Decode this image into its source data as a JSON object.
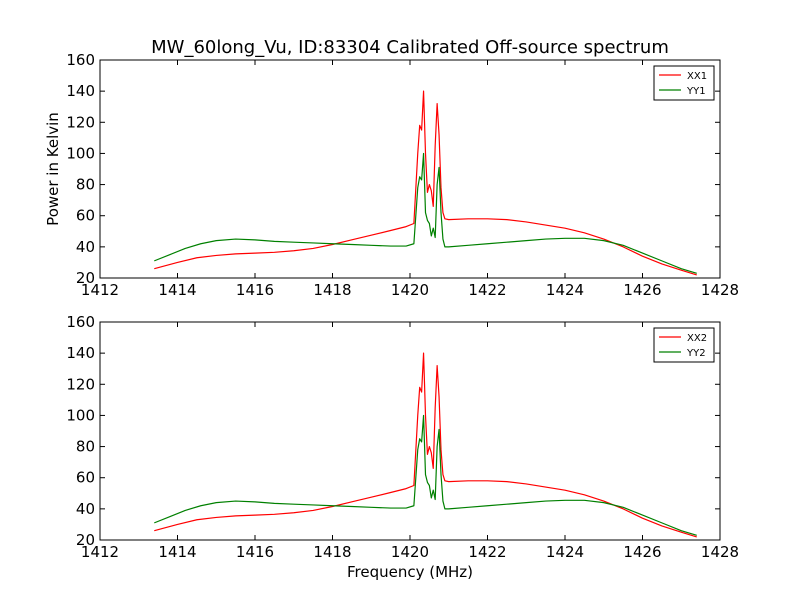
{
  "figure": {
    "title": "MW_60long_Vu, ID:83304 Calibrated Off-source spectrum"
  },
  "colors": {
    "xx": "#ff0000",
    "yy": "#008000",
    "frame": "#000000"
  },
  "chart_data": [
    {
      "type": "line",
      "xlabel": "",
      "ylabel": "Power in Kelvin",
      "xlim": [
        1412,
        1428
      ],
      "ylim": [
        20,
        160
      ],
      "xticks": [
        1412,
        1414,
        1416,
        1418,
        1420,
        1422,
        1424,
        1426,
        1428
      ],
      "yticks": [
        20,
        40,
        60,
        80,
        100,
        120,
        140,
        160
      ],
      "legend": "top-right",
      "grid": false,
      "series": [
        {
          "name": "XX1",
          "color": "#ff0000",
          "x": [
            1413.4,
            1414.0,
            1414.5,
            1415.0,
            1415.5,
            1416.0,
            1416.5,
            1417.0,
            1417.5,
            1418.0,
            1418.5,
            1419.0,
            1419.5,
            1419.9,
            1420.1,
            1420.2,
            1420.25,
            1420.3,
            1420.35,
            1420.4,
            1420.45,
            1420.5,
            1420.55,
            1420.6,
            1420.65,
            1420.7,
            1420.75,
            1420.8,
            1420.85,
            1420.9,
            1421.0,
            1421.5,
            1422.0,
            1422.5,
            1423.0,
            1423.5,
            1424.0,
            1424.5,
            1425.0,
            1425.5,
            1426.0,
            1426.5,
            1427.0,
            1427.4
          ],
          "y": [
            26,
            30,
            33,
            34.5,
            35.5,
            36,
            36.5,
            37.5,
            39,
            41.5,
            44.5,
            47.5,
            50.5,
            53,
            55,
            100,
            118,
            115,
            140,
            100,
            75,
            80,
            76,
            66,
            105,
            132,
            112,
            78,
            62,
            58,
            57.5,
            58,
            58,
            57.5,
            56,
            54,
            52,
            49,
            45,
            40,
            34,
            29,
            25,
            22
          ]
        },
        {
          "name": "YY1",
          "color": "#008000",
          "x": [
            1413.4,
            1413.8,
            1414.2,
            1414.6,
            1415.0,
            1415.5,
            1416.0,
            1416.5,
            1417.0,
            1417.5,
            1418.0,
            1418.5,
            1419.0,
            1419.5,
            1419.9,
            1420.1,
            1420.2,
            1420.25,
            1420.3,
            1420.35,
            1420.4,
            1420.45,
            1420.5,
            1420.55,
            1420.6,
            1420.65,
            1420.7,
            1420.75,
            1420.8,
            1420.85,
            1420.9,
            1421.0,
            1421.5,
            1422.0,
            1422.5,
            1423.0,
            1423.5,
            1424.0,
            1424.5,
            1425.0,
            1425.5,
            1426.0,
            1426.5,
            1427.0,
            1427.4
          ],
          "y": [
            31,
            35,
            39,
            42,
            44,
            45,
            44.5,
            43.5,
            43,
            42.5,
            42,
            41.5,
            41,
            40.5,
            40.5,
            42,
            78,
            85,
            83,
            100,
            62,
            57,
            55,
            47,
            52,
            46,
            80,
            91,
            62,
            45,
            40,
            40,
            41,
            42,
            43,
            44,
            45,
            45.5,
            45.5,
            44,
            41,
            36,
            31,
            26,
            23
          ]
        }
      ]
    },
    {
      "type": "line",
      "xlabel": "Frequency (MHz)",
      "ylabel": "",
      "xlim": [
        1412,
        1428
      ],
      "ylim": [
        20,
        160
      ],
      "xticks": [
        1412,
        1414,
        1416,
        1418,
        1420,
        1422,
        1424,
        1426,
        1428
      ],
      "yticks": [
        20,
        40,
        60,
        80,
        100,
        120,
        140,
        160
      ],
      "legend": "top-right",
      "grid": false,
      "series": [
        {
          "name": "XX2",
          "color": "#ff0000",
          "x": [
            1413.4,
            1414.0,
            1414.5,
            1415.0,
            1415.5,
            1416.0,
            1416.5,
            1417.0,
            1417.5,
            1418.0,
            1418.5,
            1419.0,
            1419.5,
            1419.9,
            1420.1,
            1420.2,
            1420.25,
            1420.3,
            1420.35,
            1420.4,
            1420.45,
            1420.5,
            1420.55,
            1420.6,
            1420.65,
            1420.7,
            1420.75,
            1420.8,
            1420.85,
            1420.9,
            1421.0,
            1421.5,
            1422.0,
            1422.5,
            1423.0,
            1423.5,
            1424.0,
            1424.5,
            1425.0,
            1425.5,
            1426.0,
            1426.5,
            1427.0,
            1427.4
          ],
          "y": [
            26,
            30,
            33,
            34.5,
            35.5,
            36,
            36.5,
            37.5,
            39,
            41.5,
            44.5,
            47.5,
            50.5,
            53,
            55,
            100,
            118,
            115,
            140,
            100,
            75,
            80,
            76,
            66,
            105,
            132,
            112,
            78,
            62,
            58,
            57.5,
            58,
            58,
            57.5,
            56,
            54,
            52,
            49,
            45,
            40,
            34,
            29,
            25,
            22
          ]
        },
        {
          "name": "YY2",
          "color": "#008000",
          "x": [
            1413.4,
            1413.8,
            1414.2,
            1414.6,
            1415.0,
            1415.5,
            1416.0,
            1416.5,
            1417.0,
            1417.5,
            1418.0,
            1418.5,
            1419.0,
            1419.5,
            1419.9,
            1420.1,
            1420.2,
            1420.25,
            1420.3,
            1420.35,
            1420.4,
            1420.45,
            1420.5,
            1420.55,
            1420.6,
            1420.65,
            1420.7,
            1420.75,
            1420.8,
            1420.85,
            1420.9,
            1421.0,
            1421.5,
            1422.0,
            1422.5,
            1423.0,
            1423.5,
            1424.0,
            1424.5,
            1425.0,
            1425.5,
            1426.0,
            1426.5,
            1427.0,
            1427.4
          ],
          "y": [
            31,
            35,
            39,
            42,
            44,
            45,
            44.5,
            43.5,
            43,
            42.5,
            42,
            41.5,
            41,
            40.5,
            40.5,
            42,
            78,
            85,
            83,
            100,
            62,
            57,
            55,
            47,
            52,
            46,
            80,
            91,
            62,
            45,
            40,
            40,
            41,
            42,
            43,
            44,
            45,
            45.5,
            45.5,
            44,
            41,
            36,
            31,
            26,
            23
          ]
        }
      ]
    }
  ]
}
